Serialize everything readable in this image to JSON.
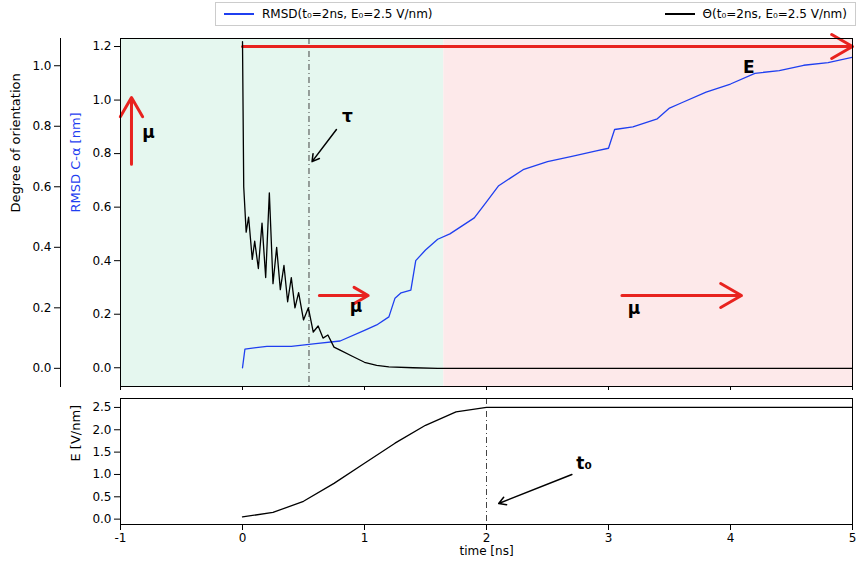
{
  "chart_data": [
    {
      "type": "line",
      "legend": "top",
      "tick_labels": "y",
      "xlim": [
        -1,
        5
      ],
      "xticks": [
        -1,
        0,
        1,
        2,
        3,
        4,
        5
      ],
      "y_label": "RMSD C-α [nm]",
      "ylim": [
        -0.07,
        1.23
      ],
      "yticks": [
        {
          "value": 0,
          "label": "0.0"
        },
        0.2,
        0.4,
        0.6,
        0.8,
        {
          "value": 1,
          "label": "1.0"
        },
        1.2
      ],
      "y2_label": "Degree of orientation",
      "y2lim": [
        -0.06,
        1.09
      ],
      "y2ticks": [
        {
          "value": 0,
          "label": "0.0"
        },
        0.2,
        0.4,
        0.6,
        0.8,
        {
          "value": 1,
          "label": "1.0"
        }
      ],
      "series": [
        {
          "name": "RMSD(t₀=2ns, E₀=2.5 V/nm)",
          "color": "#1f3ff0",
          "x": [
            0,
            0.02,
            0.2,
            0.4,
            0.6,
            0.8,
            1.0,
            1.1,
            1.2,
            1.25,
            1.3,
            1.38,
            1.42,
            1.5,
            1.6,
            1.7,
            1.8,
            1.9,
            2.0,
            2.1,
            2.3,
            2.5,
            2.7,
            2.9,
            3.0,
            3.05,
            3.2,
            3.4,
            3.5,
            3.6,
            3.8,
            4.0,
            4.2,
            4.4,
            4.6,
            4.8,
            5.0
          ],
          "values": [
            0.0,
            0.07,
            0.08,
            0.08,
            0.09,
            0.1,
            0.14,
            0.16,
            0.19,
            0.26,
            0.28,
            0.29,
            0.4,
            0.44,
            0.48,
            0.5,
            0.53,
            0.56,
            0.62,
            0.68,
            0.74,
            0.77,
            0.79,
            0.81,
            0.82,
            0.89,
            0.9,
            0.93,
            0.97,
            0.99,
            1.03,
            1.06,
            1.1,
            1.11,
            1.13,
            1.14,
            1.16
          ]
        },
        {
          "name": "Θ(t₀=2ns, E₀=2.5 V/nm)",
          "color": "#000000",
          "axis": "y2",
          "x": [
            0,
            0.01,
            0.03,
            0.05,
            0.08,
            0.1,
            0.13,
            0.16,
            0.19,
            0.22,
            0.25,
            0.28,
            0.31,
            0.34,
            0.37,
            0.4,
            0.43,
            0.46,
            0.5,
            0.54,
            0.58,
            0.62,
            0.66,
            0.7,
            0.75,
            0.8,
            0.9,
            1.0,
            1.1,
            1.2,
            1.4,
            1.6,
            2.0,
            3.0,
            4.0,
            5.0
          ],
          "values": [
            1.08,
            0.6,
            0.45,
            0.5,
            0.36,
            0.42,
            0.33,
            0.48,
            0.3,
            0.58,
            0.28,
            0.4,
            0.26,
            0.34,
            0.22,
            0.3,
            0.2,
            0.25,
            0.16,
            0.2,
            0.12,
            0.14,
            0.1,
            0.11,
            0.07,
            0.06,
            0.04,
            0.02,
            0.01,
            0.005,
            0.002,
            0.0,
            0.0,
            0.0,
            0.0,
            0.0
          ]
        }
      ],
      "regions": [
        {
          "x1": -1,
          "x2": 1.65,
          "color": "#e5f7ef"
        },
        {
          "x1": 1.65,
          "x2": 5,
          "color": "#fde9ea"
        }
      ],
      "vlines": [
        {
          "x": 0.545,
          "line_style": "dashdot"
        }
      ],
      "arrows": [
        {
          "x1": 0,
          "y1": 1.2,
          "x2": 5,
          "y2": 1.2,
          "color": "#e8231f"
        },
        {
          "x1": -0.91,
          "y1": 0.76,
          "x2": -0.91,
          "y2": 1.01,
          "color": "#e8231f"
        },
        {
          "x1": 0.63,
          "y1": 0.27,
          "x2": 1.03,
          "y2": 0.27,
          "color": "#e8231f"
        },
        {
          "x1": 3.11,
          "y1": 0.27,
          "x2": 4.09,
          "y2": 0.27,
          "color": "#e8231f"
        },
        {
          "x1": 0.77,
          "y1": 0.89,
          "x2": 0.57,
          "y2": 0.77,
          "color": "#000000"
        }
      ],
      "annotations": [
        {
          "text": "E",
          "x": 4.15,
          "y": 1.12
        },
        {
          "text": "τ",
          "x": 0.86,
          "y": 0.94
        },
        {
          "text": "μ",
          "x": -0.77,
          "y": 0.88
        },
        {
          "text": "μ",
          "x": 0.93,
          "y": 0.23
        },
        {
          "text": "μ",
          "x": 3.21,
          "y": 0.22
        }
      ]
    },
    {
      "type": "line",
      "x_label": "time [ns]",
      "xlim": [
        -1,
        5
      ],
      "xticks": [
        -1,
        0,
        1,
        2,
        3,
        4,
        5
      ],
      "y_label": "E [V/nm]",
      "ylim": [
        -0.12,
        2.7
      ],
      "yticks": [
        {
          "value": 0,
          "label": "0.0"
        },
        0.5,
        {
          "value": 1,
          "label": "1.0"
        },
        1.5,
        {
          "value": 2,
          "label": "2.0"
        },
        2.5
      ],
      "series": [
        {
          "color": "#000000",
          "x": [
            0,
            0.25,
            0.5,
            0.75,
            1.0,
            1.25,
            1.5,
            1.75,
            2.0,
            5.0
          ],
          "values": [
            0.05,
            0.15,
            0.4,
            0.8,
            1.25,
            1.7,
            2.1,
            2.4,
            2.5,
            2.5
          ]
        }
      ],
      "vlines": [
        {
          "x": 2,
          "line_style": "dashdot"
        }
      ],
      "arrows": [
        {
          "x1": 2.7,
          "y1": 1.0,
          "x2": 2.1,
          "y2": 0.35,
          "color": "#000000"
        }
      ],
      "annotations": [
        {
          "text": "t₀",
          "x": 2.8,
          "y": 1.25
        }
      ]
    }
  ]
}
